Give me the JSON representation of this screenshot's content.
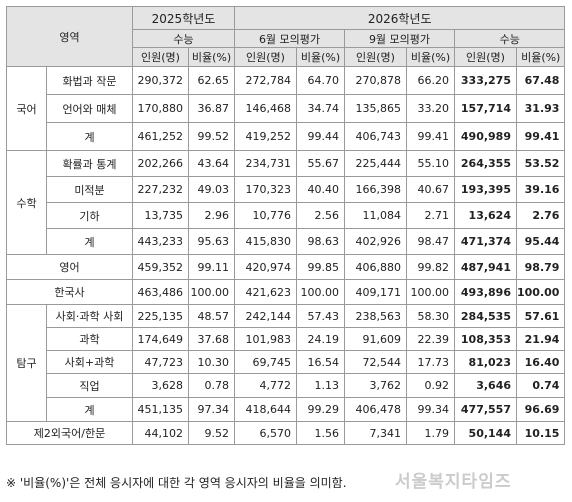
{
  "header": {
    "area": "영역",
    "year_2025": "2025학년도",
    "year_2026": "2026학년도",
    "suneung": "수능",
    "june": "6월 모의평가",
    "sept": "9월 모의평가",
    "count": "인원(명)",
    "ratio": "비율(%)"
  },
  "groups": {
    "korean": "국어",
    "math": "수학",
    "english": "영어",
    "history": "한국사",
    "inquiry": "탐구",
    "social_science": "사회·과학",
    "foreign": "제2외국어/한문"
  },
  "rows": {
    "kr_hwa": {
      "label": "화법과 작문",
      "v": [
        "290,372",
        "62.65",
        "272,784",
        "64.70",
        "270,878",
        "66.20",
        "333,275",
        "67.48"
      ]
    },
    "kr_eon": {
      "label": "언어와 매체",
      "v": [
        "170,880",
        "36.87",
        "146,468",
        "34.74",
        "135,865",
        "33.20",
        "157,714",
        "31.93"
      ]
    },
    "kr_total": {
      "label": "계",
      "v": [
        "461,252",
        "99.52",
        "419,252",
        "99.44",
        "406,743",
        "99.41",
        "490,989",
        "99.41"
      ]
    },
    "ma_prob": {
      "label": "확률과 통계",
      "v": [
        "202,266",
        "43.64",
        "234,731",
        "55.67",
        "225,444",
        "55.10",
        "264,355",
        "53.52"
      ]
    },
    "ma_calc": {
      "label": "미적분",
      "v": [
        "227,232",
        "49.03",
        "170,323",
        "40.40",
        "166,398",
        "40.67",
        "193,395",
        "39.16"
      ]
    },
    "ma_geo": {
      "label": "기하",
      "v": [
        "13,735",
        "2.96",
        "10,776",
        "2.56",
        "11,084",
        "2.71",
        "13,624",
        "2.76"
      ]
    },
    "ma_total": {
      "label": "계",
      "v": [
        "443,233",
        "95.63",
        "415,830",
        "98.63",
        "402,926",
        "98.47",
        "471,374",
        "95.44"
      ]
    },
    "english": {
      "v": [
        "459,352",
        "99.11",
        "420,974",
        "99.85",
        "406,880",
        "99.82",
        "487,941",
        "98.79"
      ]
    },
    "history": {
      "v": [
        "463,486",
        "100.00",
        "421,623",
        "100.00",
        "409,171",
        "100.00",
        "493,896",
        "100.00"
      ]
    },
    "in_social": {
      "label": "사회",
      "v": [
        "225,135",
        "48.57",
        "242,144",
        "57.43",
        "238,563",
        "58.30",
        "284,535",
        "57.61"
      ]
    },
    "in_science": {
      "label": "과학",
      "v": [
        "174,649",
        "37.68",
        "101,983",
        "24.19",
        "91,609",
        "22.39",
        "108,353",
        "21.94"
      ]
    },
    "in_both": {
      "label": "사회+과학",
      "v": [
        "47,723",
        "10.30",
        "69,745",
        "16.54",
        "72,544",
        "17.73",
        "81,023",
        "16.40"
      ]
    },
    "in_job": {
      "label": "직업",
      "v": [
        "3,628",
        "0.78",
        "4,772",
        "1.13",
        "3,762",
        "0.92",
        "3,646",
        "0.74"
      ]
    },
    "in_total": {
      "label": "계",
      "v": [
        "451,135",
        "97.34",
        "418,644",
        "99.29",
        "406,478",
        "99.34",
        "477,557",
        "96.69"
      ]
    },
    "foreign": {
      "v": [
        "44,102",
        "9.52",
        "6,570",
        "1.56",
        "7,341",
        "1.79",
        "50,144",
        "10.15"
      ]
    }
  },
  "footnote": "※ '비율(%)'은 전체 응시자에 대한 각 영역 응시자의 비율을 의미함.",
  "watermark": "서울복지타임즈",
  "colors": {
    "header_bg": "#e4e4e4",
    "border": "#9a9a9a"
  }
}
